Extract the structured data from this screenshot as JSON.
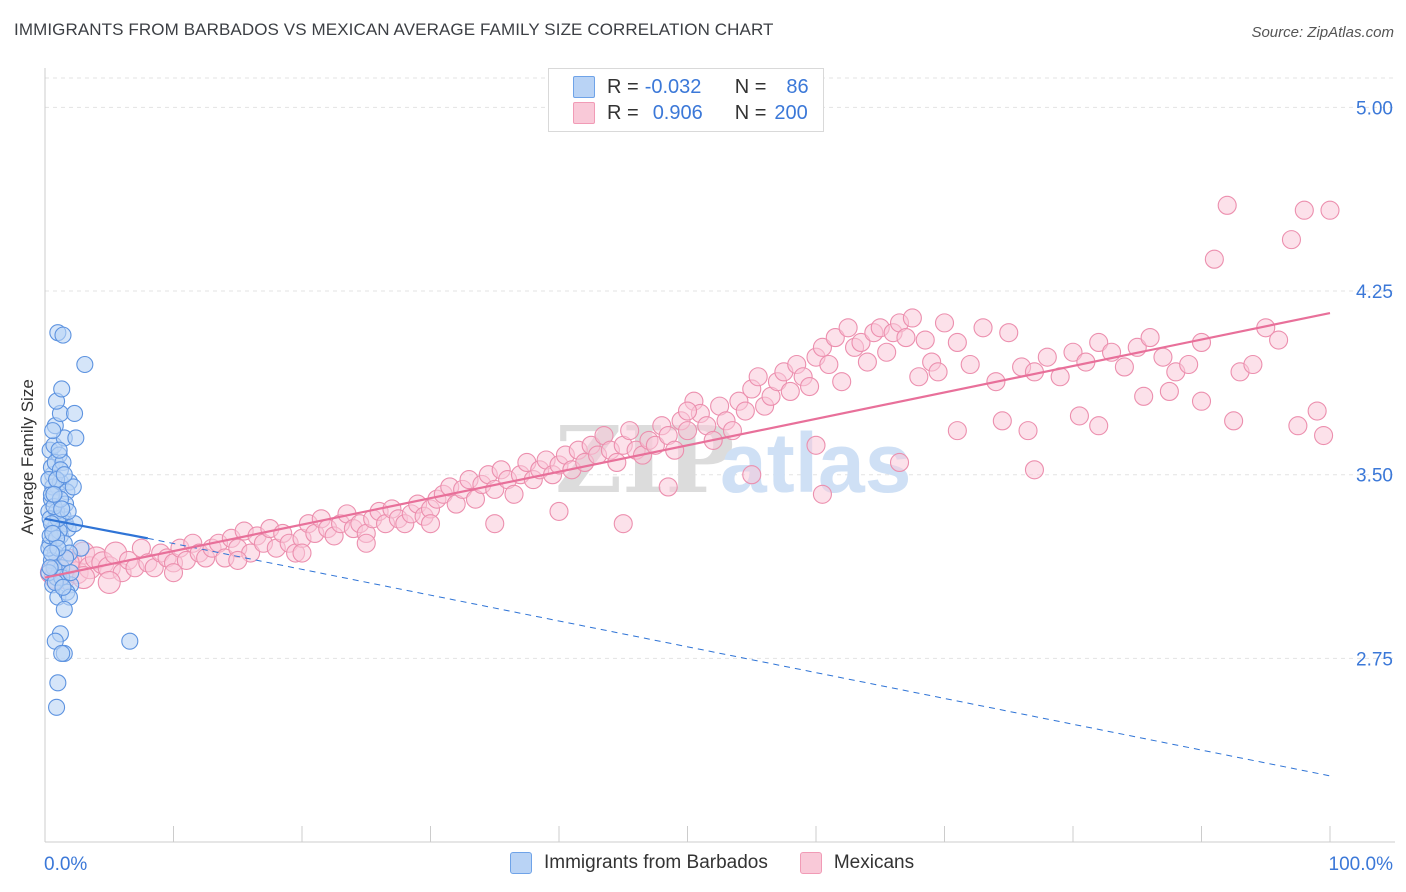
{
  "title": "IMMIGRANTS FROM BARBADOS VS MEXICAN AVERAGE FAMILY SIZE CORRELATION CHART",
  "source": "Source: ZipAtlas.com",
  "watermark": {
    "zip": "ZIP",
    "atlas": "atlas"
  },
  "legend": {
    "r_label": "R =",
    "n_label": "N =",
    "rows": [
      {
        "name": "Immigrants from Barbados",
        "r": "-0.032",
        "n": "86",
        "color": "#6fa3e8"
      },
      {
        "name": "Mexicans",
        "r": "0.906",
        "n": "200",
        "color": "#f19bb6"
      }
    ]
  },
  "colors": {
    "blue_fill": "#b9d3f5",
    "blue_stroke": "#5d93e0",
    "blue_line": "#2f74d6",
    "pink_fill": "#f9c9d8",
    "pink_stroke": "#ec8fae",
    "pink_line": "#e8709a",
    "axis_text": "#3b78d8",
    "grid": "#e3e3e3"
  },
  "chart_data": {
    "type": "scatter",
    "title": "IMMIGRANTS FROM BARBADOS VS MEXICAN AVERAGE FAMILY SIZE CORRELATION CHART",
    "xlabel": "",
    "ylabel": "Average Family Size",
    "xlim": [
      0,
      100
    ],
    "ylim": [
      2.0,
      5.12
    ],
    "x_tick_labels": [
      "0.0%",
      "100.0%"
    ],
    "y_ticks": [
      2.75,
      3.5,
      4.25,
      5.0
    ],
    "y_tick_labels": [
      "2.75",
      "3.50",
      "4.25",
      "5.00"
    ],
    "series": [
      {
        "name": "Immigrants from Barbados",
        "r": -0.032,
        "n": 86,
        "trend_solid": {
          "x": [
            0,
            8
          ],
          "y": [
            3.32,
            3.24
          ]
        },
        "trend_dashed": {
          "x": [
            8,
            100
          ],
          "y": [
            3.24,
            2.27
          ]
        },
        "points": [
          [
            0.3,
            3.35
          ],
          [
            0.5,
            3.4
          ],
          [
            0.7,
            3.28
          ],
          [
            0.4,
            3.22
          ],
          [
            0.9,
            3.3
          ],
          [
            1.2,
            3.25
          ],
          [
            0.6,
            3.5
          ],
          [
            1.0,
            3.45
          ],
          [
            1.4,
            3.33
          ],
          [
            0.8,
            3.18
          ],
          [
            1.1,
            3.1
          ],
          [
            0.5,
            3.15
          ],
          [
            1.6,
            3.3
          ],
          [
            1.8,
            3.28
          ],
          [
            0.3,
            3.2
          ],
          [
            0.6,
            3.05
          ],
          [
            0.9,
            3.08
          ],
          [
            1.3,
            3.12
          ],
          [
            1.0,
            3.0
          ],
          [
            2.0,
            3.05
          ],
          [
            0.4,
            3.6
          ],
          [
            0.7,
            3.62
          ],
          [
            1.1,
            3.58
          ],
          [
            1.5,
            3.65
          ],
          [
            0.8,
            3.7
          ],
          [
            1.2,
            3.75
          ],
          [
            0.9,
            3.8
          ],
          [
            1.3,
            3.85
          ],
          [
            2.3,
            3.75
          ],
          [
            2.4,
            3.65
          ],
          [
            1.0,
            4.08
          ],
          [
            1.4,
            4.07
          ],
          [
            3.1,
            3.95
          ],
          [
            0.6,
            3.45
          ],
          [
            1.2,
            3.47
          ],
          [
            1.9,
            3.47
          ],
          [
            1.7,
            3.43
          ],
          [
            2.2,
            3.45
          ],
          [
            0.5,
            3.42
          ],
          [
            1.6,
            3.38
          ],
          [
            2.3,
            3.3
          ],
          [
            0.9,
            3.35
          ],
          [
            0.4,
            3.25
          ],
          [
            1.1,
            3.27
          ],
          [
            1.5,
            3.22
          ],
          [
            0.7,
            3.12
          ],
          [
            2.8,
            3.2
          ],
          [
            1.9,
            3.18
          ],
          [
            0.3,
            3.1
          ],
          [
            1.3,
            3.08
          ],
          [
            1.7,
            3.02
          ],
          [
            1.9,
            3.0
          ],
          [
            1.5,
            2.95
          ],
          [
            1.2,
            2.85
          ],
          [
            0.8,
            2.82
          ],
          [
            1.5,
            2.77
          ],
          [
            1.3,
            2.77
          ],
          [
            1.0,
            2.65
          ],
          [
            0.9,
            2.55
          ],
          [
            6.6,
            2.82
          ],
          [
            0.5,
            3.53
          ],
          [
            0.8,
            3.55
          ],
          [
            1.4,
            3.55
          ],
          [
            1.1,
            3.6
          ],
          [
            0.6,
            3.68
          ],
          [
            0.4,
            3.32
          ],
          [
            1.0,
            3.32
          ],
          [
            1.8,
            3.35
          ],
          [
            0.7,
            3.37
          ],
          [
            1.2,
            3.4
          ],
          [
            0.3,
            3.48
          ],
          [
            0.5,
            3.3
          ],
          [
            0.9,
            3.24
          ],
          [
            1.6,
            3.16
          ],
          [
            2.0,
            3.1
          ],
          [
            0.8,
            3.06
          ],
          [
            1.4,
            3.04
          ],
          [
            0.6,
            3.26
          ],
          [
            1.0,
            3.2
          ],
          [
            0.5,
            3.18
          ],
          [
            1.2,
            3.52
          ],
          [
            0.9,
            3.48
          ],
          [
            1.5,
            3.5
          ],
          [
            0.7,
            3.42
          ],
          [
            1.3,
            3.36
          ],
          [
            0.4,
            3.12
          ]
        ]
      },
      {
        "name": "Mexicans",
        "r": 0.906,
        "n": 200,
        "trend_solid": {
          "x": [
            0,
            100
          ],
          "y": [
            3.08,
            4.16
          ]
        },
        "points": [
          [
            0.5,
            3.1
          ],
          [
            1.0,
            3.12
          ],
          [
            1.5,
            3.08
          ],
          [
            2.0,
            3.15
          ],
          [
            2.5,
            3.1
          ],
          [
            3.0,
            3.18
          ],
          [
            3.5,
            3.12
          ],
          [
            4.0,
            3.16
          ],
          [
            4.5,
            3.14
          ],
          [
            5.0,
            3.12
          ],
          [
            5.5,
            3.18
          ],
          [
            6.0,
            3.1
          ],
          [
            6.5,
            3.15
          ],
          [
            7.0,
            3.12
          ],
          [
            7.5,
            3.2
          ],
          [
            8.0,
            3.14
          ],
          [
            8.5,
            3.12
          ],
          [
            9.0,
            3.18
          ],
          [
            9.5,
            3.16
          ],
          [
            10.0,
            3.14
          ],
          [
            10.5,
            3.2
          ],
          [
            11.0,
            3.15
          ],
          [
            11.5,
            3.22
          ],
          [
            12.0,
            3.18
          ],
          [
            12.5,
            3.16
          ],
          [
            13.0,
            3.2
          ],
          [
            13.5,
            3.22
          ],
          [
            14.0,
            3.16
          ],
          [
            14.5,
            3.24
          ],
          [
            15.0,
            3.2
          ],
          [
            15.5,
            3.27
          ],
          [
            16.0,
            3.18
          ],
          [
            16.5,
            3.25
          ],
          [
            17.0,
            3.22
          ],
          [
            17.5,
            3.28
          ],
          [
            18.0,
            3.2
          ],
          [
            18.5,
            3.26
          ],
          [
            19.0,
            3.22
          ],
          [
            19.5,
            3.18
          ],
          [
            20.0,
            3.24
          ],
          [
            20.5,
            3.3
          ],
          [
            21.0,
            3.26
          ],
          [
            21.5,
            3.32
          ],
          [
            22.0,
            3.28
          ],
          [
            22.5,
            3.25
          ],
          [
            23.0,
            3.3
          ],
          [
            23.5,
            3.34
          ],
          [
            24.0,
            3.28
          ],
          [
            24.5,
            3.3
          ],
          [
            25.0,
            3.26
          ],
          [
            25.5,
            3.32
          ],
          [
            26.0,
            3.35
          ],
          [
            26.5,
            3.3
          ],
          [
            27.0,
            3.36
          ],
          [
            27.5,
            3.32
          ],
          [
            28.0,
            3.3
          ],
          [
            28.5,
            3.34
          ],
          [
            29.0,
            3.38
          ],
          [
            29.5,
            3.33
          ],
          [
            30.0,
            3.36
          ],
          [
            30.5,
            3.4
          ],
          [
            31.0,
            3.42
          ],
          [
            31.5,
            3.45
          ],
          [
            32.0,
            3.38
          ],
          [
            32.5,
            3.44
          ],
          [
            33.0,
            3.48
          ],
          [
            33.5,
            3.4
          ],
          [
            34.0,
            3.46
          ],
          [
            34.5,
            3.5
          ],
          [
            35.0,
            3.44
          ],
          [
            35.5,
            3.52
          ],
          [
            36.0,
            3.48
          ],
          [
            36.5,
            3.42
          ],
          [
            37.0,
            3.5
          ],
          [
            37.5,
            3.55
          ],
          [
            38.0,
            3.48
          ],
          [
            38.5,
            3.52
          ],
          [
            39.0,
            3.56
          ],
          [
            39.5,
            3.5
          ],
          [
            40.0,
            3.54
          ],
          [
            40.5,
            3.58
          ],
          [
            41.0,
            3.52
          ],
          [
            41.5,
            3.6
          ],
          [
            42.0,
            3.55
          ],
          [
            42.5,
            3.62
          ],
          [
            43.0,
            3.58
          ],
          [
            43.5,
            3.66
          ],
          [
            44.0,
            3.6
          ],
          [
            44.5,
            3.55
          ],
          [
            45.0,
            3.62
          ],
          [
            45.5,
            3.68
          ],
          [
            46.0,
            3.6
          ],
          [
            46.5,
            3.58
          ],
          [
            47.0,
            3.64
          ],
          [
            47.5,
            3.62
          ],
          [
            48.0,
            3.7
          ],
          [
            48.5,
            3.66
          ],
          [
            49.0,
            3.6
          ],
          [
            49.5,
            3.72
          ],
          [
            50.0,
            3.68
          ],
          [
            50.5,
            3.8
          ],
          [
            51.0,
            3.75
          ],
          [
            51.5,
            3.7
          ],
          [
            52.0,
            3.64
          ],
          [
            52.5,
            3.78
          ],
          [
            53.0,
            3.72
          ],
          [
            53.5,
            3.68
          ],
          [
            54.0,
            3.8
          ],
          [
            54.5,
            3.76
          ],
          [
            55.0,
            3.85
          ],
          [
            55.5,
            3.9
          ],
          [
            56.0,
            3.78
          ],
          [
            56.5,
            3.82
          ],
          [
            57.0,
            3.88
          ],
          [
            57.5,
            3.92
          ],
          [
            58.0,
            3.84
          ],
          [
            58.5,
            3.95
          ],
          [
            59.0,
            3.9
          ],
          [
            59.5,
            3.86
          ],
          [
            60.0,
            3.98
          ],
          [
            60.5,
            4.02
          ],
          [
            61.0,
            3.95
          ],
          [
            61.5,
            4.06
          ],
          [
            62.0,
            3.88
          ],
          [
            62.5,
            4.1
          ],
          [
            63.0,
            4.02
          ],
          [
            63.5,
            4.04
          ],
          [
            64.0,
            3.96
          ],
          [
            64.5,
            4.08
          ],
          [
            65.0,
            4.1
          ],
          [
            65.5,
            4.0
          ],
          [
            66.0,
            4.08
          ],
          [
            66.5,
            4.12
          ],
          [
            67.0,
            4.06
          ],
          [
            67.5,
            4.14
          ],
          [
            68.0,
            3.9
          ],
          [
            68.5,
            4.05
          ],
          [
            69.0,
            3.96
          ],
          [
            69.5,
            3.92
          ],
          [
            70.0,
            4.12
          ],
          [
            71.0,
            4.04
          ],
          [
            72.0,
            3.95
          ],
          [
            73.0,
            4.1
          ],
          [
            74.0,
            3.88
          ],
          [
            75.0,
            4.08
          ],
          [
            76.0,
            3.94
          ],
          [
            77.0,
            3.92
          ],
          [
            78.0,
            3.98
          ],
          [
            79.0,
            3.9
          ],
          [
            80.0,
            4.0
          ],
          [
            81.0,
            3.96
          ],
          [
            82.0,
            4.04
          ],
          [
            83.0,
            4.0
          ],
          [
            84.0,
            3.94
          ],
          [
            85.0,
            4.02
          ],
          [
            86.0,
            4.06
          ],
          [
            87.0,
            3.98
          ],
          [
            88.0,
            3.92
          ],
          [
            89.0,
            3.95
          ],
          [
            90.0,
            4.04
          ],
          [
            91.0,
            4.38
          ],
          [
            92.0,
            4.6
          ],
          [
            93.0,
            3.92
          ],
          [
            94.0,
            3.95
          ],
          [
            95.0,
            4.1
          ],
          [
            96.0,
            4.05
          ],
          [
            97.0,
            4.46
          ],
          [
            98.0,
            4.58
          ],
          [
            99.0,
            3.76
          ],
          [
            100.0,
            4.58
          ],
          [
            48.5,
            3.45
          ],
          [
            55.0,
            3.5
          ],
          [
            60.5,
            3.42
          ],
          [
            66.5,
            3.55
          ],
          [
            71.0,
            3.68
          ],
          [
            74.5,
            3.72
          ],
          [
            76.5,
            3.68
          ],
          [
            80.5,
            3.74
          ],
          [
            82.0,
            3.7
          ],
          [
            85.5,
            3.82
          ],
          [
            87.5,
            3.84
          ],
          [
            90.0,
            3.8
          ],
          [
            92.5,
            3.72
          ],
          [
            97.5,
            3.7
          ],
          [
            99.5,
            3.66
          ],
          [
            77.0,
            3.52
          ],
          [
            60.0,
            3.62
          ],
          [
            50.0,
            3.76
          ],
          [
            45.0,
            3.3
          ],
          [
            40.0,
            3.35
          ],
          [
            35.0,
            3.3
          ],
          [
            30.0,
            3.3
          ],
          [
            25.0,
            3.22
          ],
          [
            20.0,
            3.18
          ],
          [
            15.0,
            3.15
          ],
          [
            10.0,
            3.1
          ],
          [
            5.0,
            3.06
          ],
          [
            3.0,
            3.08
          ],
          [
            1.8,
            3.14
          ],
          [
            0.8,
            3.08
          ]
        ]
      }
    ]
  }
}
